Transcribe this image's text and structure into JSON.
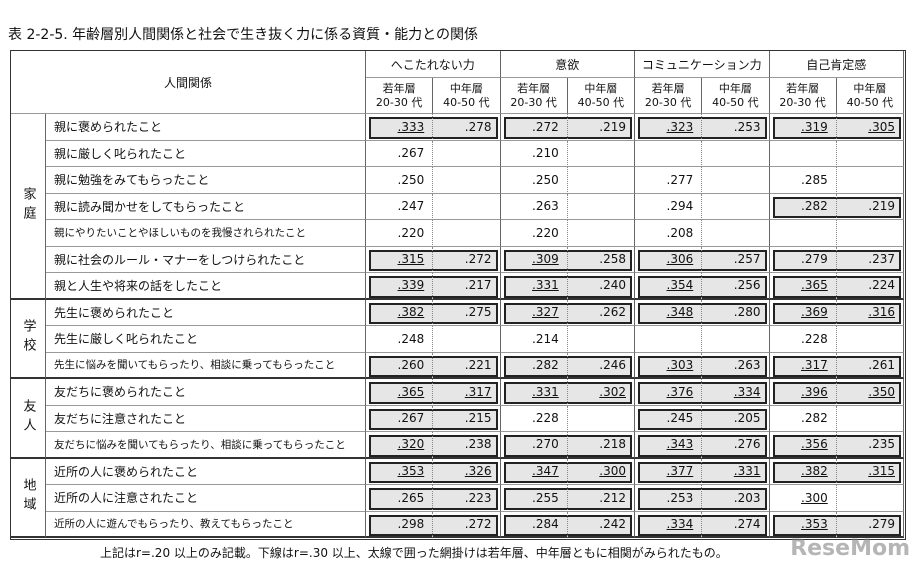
{
  "title": "表 2-2-5. 年齢層別人間関係と社会で生き抜く力に係る資質・能力との関係",
  "header": {
    "relation": "人間関係",
    "measures": [
      "へこたれない力",
      "意欲",
      "コミュニケーション力",
      "自己肯定感"
    ],
    "age_groups": [
      {
        "name": "若年層",
        "range": "20-30 代"
      },
      {
        "name": "中年層",
        "range": "40-50 代"
      }
    ]
  },
  "groups": [
    {
      "label": "家庭",
      "rows": [
        {
          "label": "親に褒められたこと",
          "shaded": [
            true,
            true,
            true,
            true
          ],
          "cells": [
            {
              "v": ".333",
              "u": true
            },
            {
              "v": ".278",
              "u": false
            },
            {
              "v": ".272",
              "u": false
            },
            {
              "v": ".219",
              "u": false
            },
            {
              "v": ".323",
              "u": true
            },
            {
              "v": ".253",
              "u": false
            },
            {
              "v": ".319",
              "u": true
            },
            {
              "v": ".305",
              "u": true
            }
          ]
        },
        {
          "label": "親に厳しく叱られたこと",
          "shaded": [
            false,
            false,
            false,
            false
          ],
          "cells": [
            {
              "v": ".267",
              "u": false
            },
            null,
            {
              "v": ".210",
              "u": false
            },
            null,
            null,
            null,
            null,
            null
          ]
        },
        {
          "label": "親に勉強をみてもらったこと",
          "shaded": [
            false,
            false,
            false,
            false
          ],
          "cells": [
            {
              "v": ".250",
              "u": false
            },
            null,
            {
              "v": ".250",
              "u": false
            },
            null,
            {
              "v": ".277",
              "u": false
            },
            null,
            {
              "v": ".285",
              "u": false
            },
            null
          ]
        },
        {
          "label": "親に読み聞かせをしてもらったこと",
          "shaded": [
            false,
            false,
            false,
            true
          ],
          "cells": [
            {
              "v": ".247",
              "u": false
            },
            null,
            {
              "v": ".263",
              "u": false
            },
            null,
            {
              "v": ".294",
              "u": false
            },
            null,
            {
              "v": ".282",
              "u": false
            },
            {
              "v": ".219",
              "u": false
            }
          ]
        },
        {
          "label": "親にやりたいことやほしいものを我慢されられたこと",
          "shaded": [
            false,
            false,
            false,
            false
          ],
          "cells": [
            {
              "v": ".220",
              "u": false
            },
            null,
            {
              "v": ".220",
              "u": false
            },
            null,
            {
              "v": ".208",
              "u": false
            },
            null,
            null,
            null
          ]
        },
        {
          "label": "親に社会のルール・マナーをしつけられたこと",
          "shaded": [
            true,
            true,
            true,
            true
          ],
          "cells": [
            {
              "v": ".315",
              "u": true
            },
            {
              "v": ".272",
              "u": false
            },
            {
              "v": ".309",
              "u": true
            },
            {
              "v": ".258",
              "u": false
            },
            {
              "v": ".306",
              "u": true
            },
            {
              "v": ".257",
              "u": false
            },
            {
              "v": ".279",
              "u": false
            },
            {
              "v": ".237",
              "u": false
            }
          ]
        },
        {
          "label": "親と人生や将来の話をしたこと",
          "shaded": [
            true,
            true,
            true,
            true
          ],
          "cells": [
            {
              "v": ".339",
              "u": true
            },
            {
              "v": ".217",
              "u": false
            },
            {
              "v": ".331",
              "u": true
            },
            {
              "v": ".240",
              "u": false
            },
            {
              "v": ".354",
              "u": true
            },
            {
              "v": ".256",
              "u": false
            },
            {
              "v": ".365",
              "u": true
            },
            {
              "v": ".224",
              "u": false
            }
          ]
        }
      ]
    },
    {
      "label": "学校",
      "rows": [
        {
          "label": "先生に褒められたこと",
          "shaded": [
            true,
            true,
            true,
            true
          ],
          "cells": [
            {
              "v": ".382",
              "u": true
            },
            {
              "v": ".275",
              "u": false
            },
            {
              "v": ".327",
              "u": true
            },
            {
              "v": ".262",
              "u": false
            },
            {
              "v": ".348",
              "u": true
            },
            {
              "v": ".280",
              "u": false
            },
            {
              "v": ".369",
              "u": true
            },
            {
              "v": ".316",
              "u": true
            }
          ]
        },
        {
          "label": "先生に厳しく叱られたこと",
          "shaded": [
            false,
            false,
            false,
            false
          ],
          "cells": [
            {
              "v": ".248",
              "u": false
            },
            null,
            {
              "v": ".214",
              "u": false
            },
            null,
            null,
            null,
            {
              "v": ".228",
              "u": false
            },
            null
          ]
        },
        {
          "label": "先生に悩みを聞いてもらったり、相談に乗ってもらったこと",
          "shaded": [
            true,
            true,
            true,
            true
          ],
          "cells": [
            {
              "v": ".260",
              "u": false
            },
            {
              "v": ".221",
              "u": false
            },
            {
              "v": ".282",
              "u": false
            },
            {
              "v": ".246",
              "u": false
            },
            {
              "v": ".303",
              "u": true
            },
            {
              "v": ".263",
              "u": false
            },
            {
              "v": ".317",
              "u": true
            },
            {
              "v": ".261",
              "u": false
            }
          ]
        }
      ]
    },
    {
      "label": "友人",
      "rows": [
        {
          "label": "友だちに褒められたこと",
          "shaded": [
            true,
            true,
            true,
            true
          ],
          "cells": [
            {
              "v": ".365",
              "u": true
            },
            {
              "v": ".317",
              "u": true
            },
            {
              "v": ".331",
              "u": true
            },
            {
              "v": ".302",
              "u": true
            },
            {
              "v": ".376",
              "u": true
            },
            {
              "v": ".334",
              "u": true
            },
            {
              "v": ".396",
              "u": true
            },
            {
              "v": ".350",
              "u": true
            }
          ]
        },
        {
          "label": "友だちに注意されたこと",
          "shaded": [
            true,
            false,
            true,
            false
          ],
          "cells": [
            {
              "v": ".267",
              "u": false
            },
            {
              "v": ".215",
              "u": false
            },
            {
              "v": ".228",
              "u": false
            },
            null,
            {
              "v": ".245",
              "u": false
            },
            {
              "v": ".205",
              "u": false
            },
            {
              "v": ".282",
              "u": false
            },
            null
          ]
        },
        {
          "label": "友だちに悩みを聞いてもらったり、相談に乗ってもらったこと",
          "shaded": [
            true,
            true,
            true,
            true
          ],
          "cells": [
            {
              "v": ".320",
              "u": true
            },
            {
              "v": ".238",
              "u": false
            },
            {
              "v": ".270",
              "u": false
            },
            {
              "v": ".218",
              "u": false
            },
            {
              "v": ".343",
              "u": true
            },
            {
              "v": ".276",
              "u": false
            },
            {
              "v": ".356",
              "u": true
            },
            {
              "v": ".235",
              "u": false
            }
          ]
        }
      ]
    },
    {
      "label": "地域",
      "rows": [
        {
          "label": "近所の人に褒められたこと",
          "shaded": [
            true,
            true,
            true,
            true
          ],
          "cells": [
            {
              "v": ".353",
              "u": true
            },
            {
              "v": ".326",
              "u": true
            },
            {
              "v": ".347",
              "u": true
            },
            {
              "v": ".300",
              "u": true
            },
            {
              "v": ".377",
              "u": true
            },
            {
              "v": ".331",
              "u": true
            },
            {
              "v": ".382",
              "u": true
            },
            {
              "v": ".315",
              "u": true
            }
          ]
        },
        {
          "label": "近所の人に注意されたこと",
          "shaded": [
            true,
            true,
            true,
            false
          ],
          "cells": [
            {
              "v": ".265",
              "u": false
            },
            {
              "v": ".223",
              "u": false
            },
            {
              "v": ".255",
              "u": false
            },
            {
              "v": ".212",
              "u": false
            },
            {
              "v": ".253",
              "u": false
            },
            {
              "v": ".203",
              "u": false
            },
            {
              "v": ".300",
              "u": true
            },
            null
          ]
        },
        {
          "label": "近所の人に遊んでもらったり、教えてもらったこと",
          "shaded": [
            true,
            true,
            true,
            true
          ],
          "cells": [
            {
              "v": ".298",
              "u": false
            },
            {
              "v": ".272",
              "u": false
            },
            {
              "v": ".284",
              "u": false
            },
            {
              "v": ".242",
              "u": false
            },
            {
              "v": ".334",
              "u": true
            },
            {
              "v": ".274",
              "u": false
            },
            {
              "v": ".353",
              "u": true
            },
            {
              "v": ".279",
              "u": false
            }
          ]
        }
      ]
    }
  ],
  "footnote": "上記はr=.20 以上のみ記載。下線はr=.30 以上、太線で囲った網掛けは若年層、中年層ともに相関がみられたもの。",
  "watermark": "ReseMom"
}
